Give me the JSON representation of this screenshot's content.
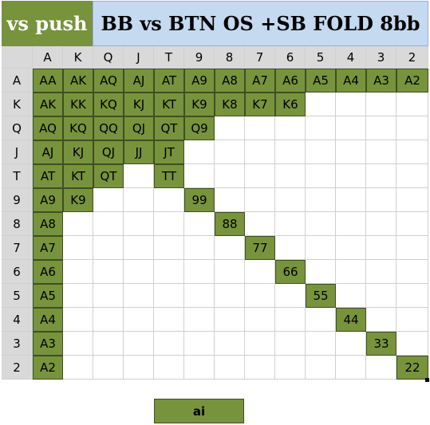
{
  "header": {
    "left_label": "vs push",
    "title": "BB vs BTN OS +SB FOLD 8bb"
  },
  "ranks": [
    "A",
    "K",
    "Q",
    "J",
    "T",
    "9",
    "8",
    "7",
    "6",
    "5",
    "4",
    "3",
    "2"
  ],
  "range": {
    "highlighted_hands": [
      "AA",
      "AK",
      "AQ",
      "AJ",
      "AT",
      "A9",
      "A8",
      "A7",
      "A6",
      "A5",
      "A4",
      "A3",
      "A2",
      "AK",
      "KK",
      "KQ",
      "KJ",
      "KT",
      "K9",
      "K8",
      "K7",
      "K6",
      "AQ",
      "KQ",
      "QQ",
      "QJ",
      "QT",
      "Q9",
      "AJ",
      "KJ",
      "QJ",
      "JJ",
      "JT",
      "AT",
      "KT",
      "QT",
      "TT",
      "A9",
      "K9",
      "99",
      "A8",
      "88",
      "A7",
      "77",
      "A6",
      "66",
      "A5",
      "55",
      "A4",
      "44",
      "A3",
      "33",
      "A2",
      "22"
    ]
  },
  "legend": {
    "label": "ai"
  },
  "colors": {
    "highlight": "#77933c",
    "title_bg": "#c5d9f1",
    "header_cell": "#d9d9d9"
  }
}
